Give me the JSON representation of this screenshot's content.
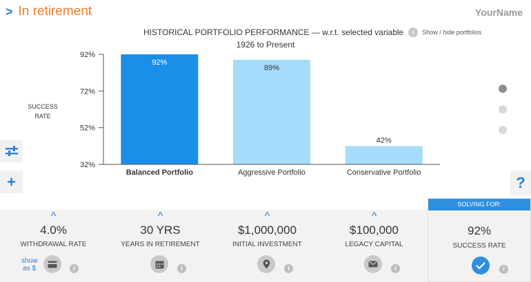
{
  "header": {
    "title": "In retirement",
    "user": "YourName"
  },
  "chart_header": {
    "title": "HISTORICAL PORTFOLIO PERFORMANCE — w.r.t. selected variable",
    "info_glyph": "i",
    "show_hide": "Show / hide portfolios",
    "subtitle": "1926 to Present"
  },
  "chart_data": {
    "type": "bar",
    "ylabel": "SUCCESS RATE",
    "ylabel_lines": [
      "SUCCESS",
      "RATE"
    ],
    "categories": [
      "Balanced Portfolio",
      "Aggressive Portfolio",
      "Conservative Portfolio"
    ],
    "values": [
      92,
      89,
      42
    ],
    "value_labels": [
      "92%",
      "89%",
      "42%"
    ],
    "yticks": [
      32,
      52,
      72,
      92
    ],
    "ytick_labels": [
      "32%",
      "52%",
      "72%",
      "92%"
    ],
    "ylim": [
      32,
      92
    ],
    "selected_index": 0,
    "colors": [
      "#1a8fea",
      "#a6dcfb",
      "#a6dcfb"
    ],
    "label_colors": [
      "#ffffff",
      "#333333",
      "#333333"
    ]
  },
  "side_buttons": {
    "adjust": "adjust-icon",
    "add": "+",
    "help": "?"
  },
  "pager": {
    "count": 3,
    "active": 0
  },
  "variables": [
    {
      "value": "4.0%",
      "label": "WITHDRAWAL RATE",
      "icon": "card-icon"
    },
    {
      "value": "30 YRS",
      "label": "YEARS IN RETIREMENT",
      "icon": "calendar-icon"
    },
    {
      "value": "$1,000,000",
      "label": "INITIAL INVESTMENT",
      "icon": "location-pin-icon"
    },
    {
      "value": "$100,000",
      "label": "LEGACY CAPITAL",
      "icon": "mail-icon"
    }
  ],
  "show_as": {
    "line1": "show",
    "line2": "as $"
  },
  "caret": "^",
  "solving": {
    "header": "SOLVING FOR:",
    "value": "92%",
    "label": "SUCCESS RATE"
  },
  "colors": {
    "accent_blue": "#2d8fe0",
    "title_orange": "#f07a28"
  }
}
